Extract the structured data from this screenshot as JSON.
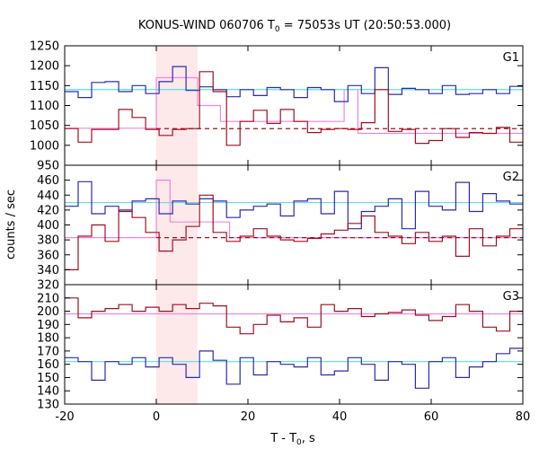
{
  "chart_data": {
    "type": "line",
    "title_main": "KONUS-WIND 060706 T",
    "title_sub": "0",
    "title_rest": " = 75053s UT (20:50:53.000)",
    "xlabel_main": "T - T",
    "xlabel_sub": "0",
    "xlabel_rest": ", s",
    "ylabel": "counts / sec",
    "xlim": [
      -20,
      80
    ],
    "x_ticks": [
      "-20",
      "0",
      "20",
      "40",
      "60",
      "80"
    ],
    "x_tick_values": [
      -20,
      0,
      20,
      40,
      60,
      80
    ],
    "highlight_interval": [
      0,
      9
    ],
    "colors": {
      "blue": "#2b2bb0",
      "red": "#a01020",
      "cyan": "#66dddd",
      "pink": "#ee88dd",
      "shade": "#fde8ea"
    },
    "panels": [
      {
        "label": "G1",
        "ylim": [
          950,
          1250
        ],
        "y_ticks": [
          "950",
          "1000",
          "1050",
          "1100",
          "1150",
          "1200",
          "1250"
        ],
        "y_tick_values": [
          950,
          1000,
          1050,
          1100,
          1150,
          1200,
          1250
        ],
        "bin_start": -20,
        "bin_width": 2.944,
        "series": [
          {
            "color": "blue",
            "values": [
              1135,
              1120,
              1158,
              1160,
              1135,
              1150,
              1130,
              1160,
              1198,
              1138,
              1147,
              1140,
              1122,
              1140,
              1125,
              1145,
              1140,
              1120,
              1145,
              1140,
              1110,
              1150,
              1130,
              1195,
              1128,
              1143,
              1140,
              1130,
              1150,
              1128,
              1130,
              1140,
              1130,
              1148,
              1130
            ]
          },
          {
            "color": "red",
            "values": [
              1042,
              1008,
              1040,
              1040,
              1090,
              1070,
              1040,
              1025,
              1040,
              1042,
              1185,
              1135,
              1000,
              1060,
              1088,
              1055,
              1090,
              1060,
              1032,
              1040,
              1042,
              1040,
              1057,
              1140,
              1035,
              1040,
              1005,
              1012,
              1042,
              1020,
              1032,
              1030,
              1045,
              1008,
              1020
            ]
          }
        ],
        "fits": [
          {
            "color": "cyan",
            "value": 1140,
            "style": "solid"
          },
          {
            "color": "red",
            "value": 1042,
            "style": "dashed",
            "from": 0
          }
        ],
        "steps": [
          {
            "color": "pink",
            "points": [
              [
                -20,
                1043
              ],
              [
                0,
                1043
              ],
              [
                0,
                1170
              ],
              [
                9,
                1170
              ],
              [
                9,
                1100
              ],
              [
                14,
                1100
              ],
              [
                14,
                1060
              ],
              [
                41,
                1060
              ],
              [
                41,
                1140
              ],
              [
                44,
                1140
              ],
              [
                44,
                1030
              ],
              [
                80,
                1030
              ]
            ]
          }
        ]
      },
      {
        "label": "G2",
        "ylim": [
          320,
          480
        ],
        "y_ticks": [
          "320",
          "340",
          "360",
          "380",
          "400",
          "420",
          "440",
          "460"
        ],
        "y_tick_values": [
          320,
          340,
          360,
          380,
          400,
          420,
          440,
          460
        ],
        "bin_start": -20,
        "bin_width": 2.944,
        "series": [
          {
            "color": "blue",
            "values": [
              425,
              458,
              415,
              425,
              418,
              432,
              435,
              415,
              432,
              428,
              435,
              432,
              410,
              420,
              425,
              428,
              412,
              432,
              435,
              415,
              445,
              395,
              418,
              425,
              435,
              395,
              445,
              425,
              420,
              457,
              418,
              442,
              432,
              428,
              412
            ]
          },
          {
            "color": "red",
            "values": [
              340,
              385,
              400,
              378,
              420,
              410,
              390,
              365,
              380,
              398,
              440,
              390,
              378,
              385,
              395,
              385,
              380,
              378,
              382,
              388,
              393,
              402,
              412,
              390,
              385,
              375,
              390,
              378,
              385,
              358,
              395,
              372,
              385,
              395,
              405
            ]
          }
        ],
        "fits": [
          {
            "color": "cyan",
            "value": 430,
            "style": "solid"
          },
          {
            "color": "red",
            "value": 383,
            "style": "dashed",
            "from": 0
          }
        ],
        "steps": [
          {
            "color": "pink",
            "points": [
              [
                -20,
                383
              ],
              [
                0,
                383
              ],
              [
                0,
                460
              ],
              [
                3,
                460
              ],
              [
                3,
                404
              ],
              [
                16,
                404
              ],
              [
                16,
                383
              ],
              [
                80,
                383
              ]
            ]
          }
        ]
      },
      {
        "label": "G3",
        "ylim": [
          130,
          220
        ],
        "y_ticks": [
          "130",
          "140",
          "150",
          "160",
          "170",
          "180",
          "190",
          "200",
          "210"
        ],
        "y_tick_values": [
          130,
          140,
          150,
          160,
          170,
          180,
          190,
          200,
          210
        ],
        "bin_start": -20,
        "bin_width": 2.944,
        "series": [
          {
            "color": "blue",
            "values": [
              165,
              162,
              148,
              162,
              160,
              165,
              158,
              165,
              160,
              150,
              170,
              163,
              145,
              165,
              152,
              162,
              160,
              158,
              165,
              152,
              155,
              165,
              160,
              148,
              162,
              160,
              142,
              162,
              165,
              150,
              158,
              162,
              168,
              172,
              160
            ]
          },
          {
            "color": "red",
            "values": [
              210,
              195,
              200,
              202,
              205,
              200,
              203,
              200,
              205,
              202,
              206,
              204,
              188,
              183,
              190,
              197,
              192,
              195,
              188,
              205,
              200,
              202,
              196,
              198,
              199,
              201,
              197,
              193,
              196,
              205,
              200,
              188,
              185,
              200,
              192
            ]
          }
        ],
        "fits": [
          {
            "color": "cyan",
            "value": 162,
            "style": "solid"
          },
          {
            "color": "pink",
            "value": 198,
            "style": "solid"
          }
        ],
        "steps": []
      }
    ]
  }
}
